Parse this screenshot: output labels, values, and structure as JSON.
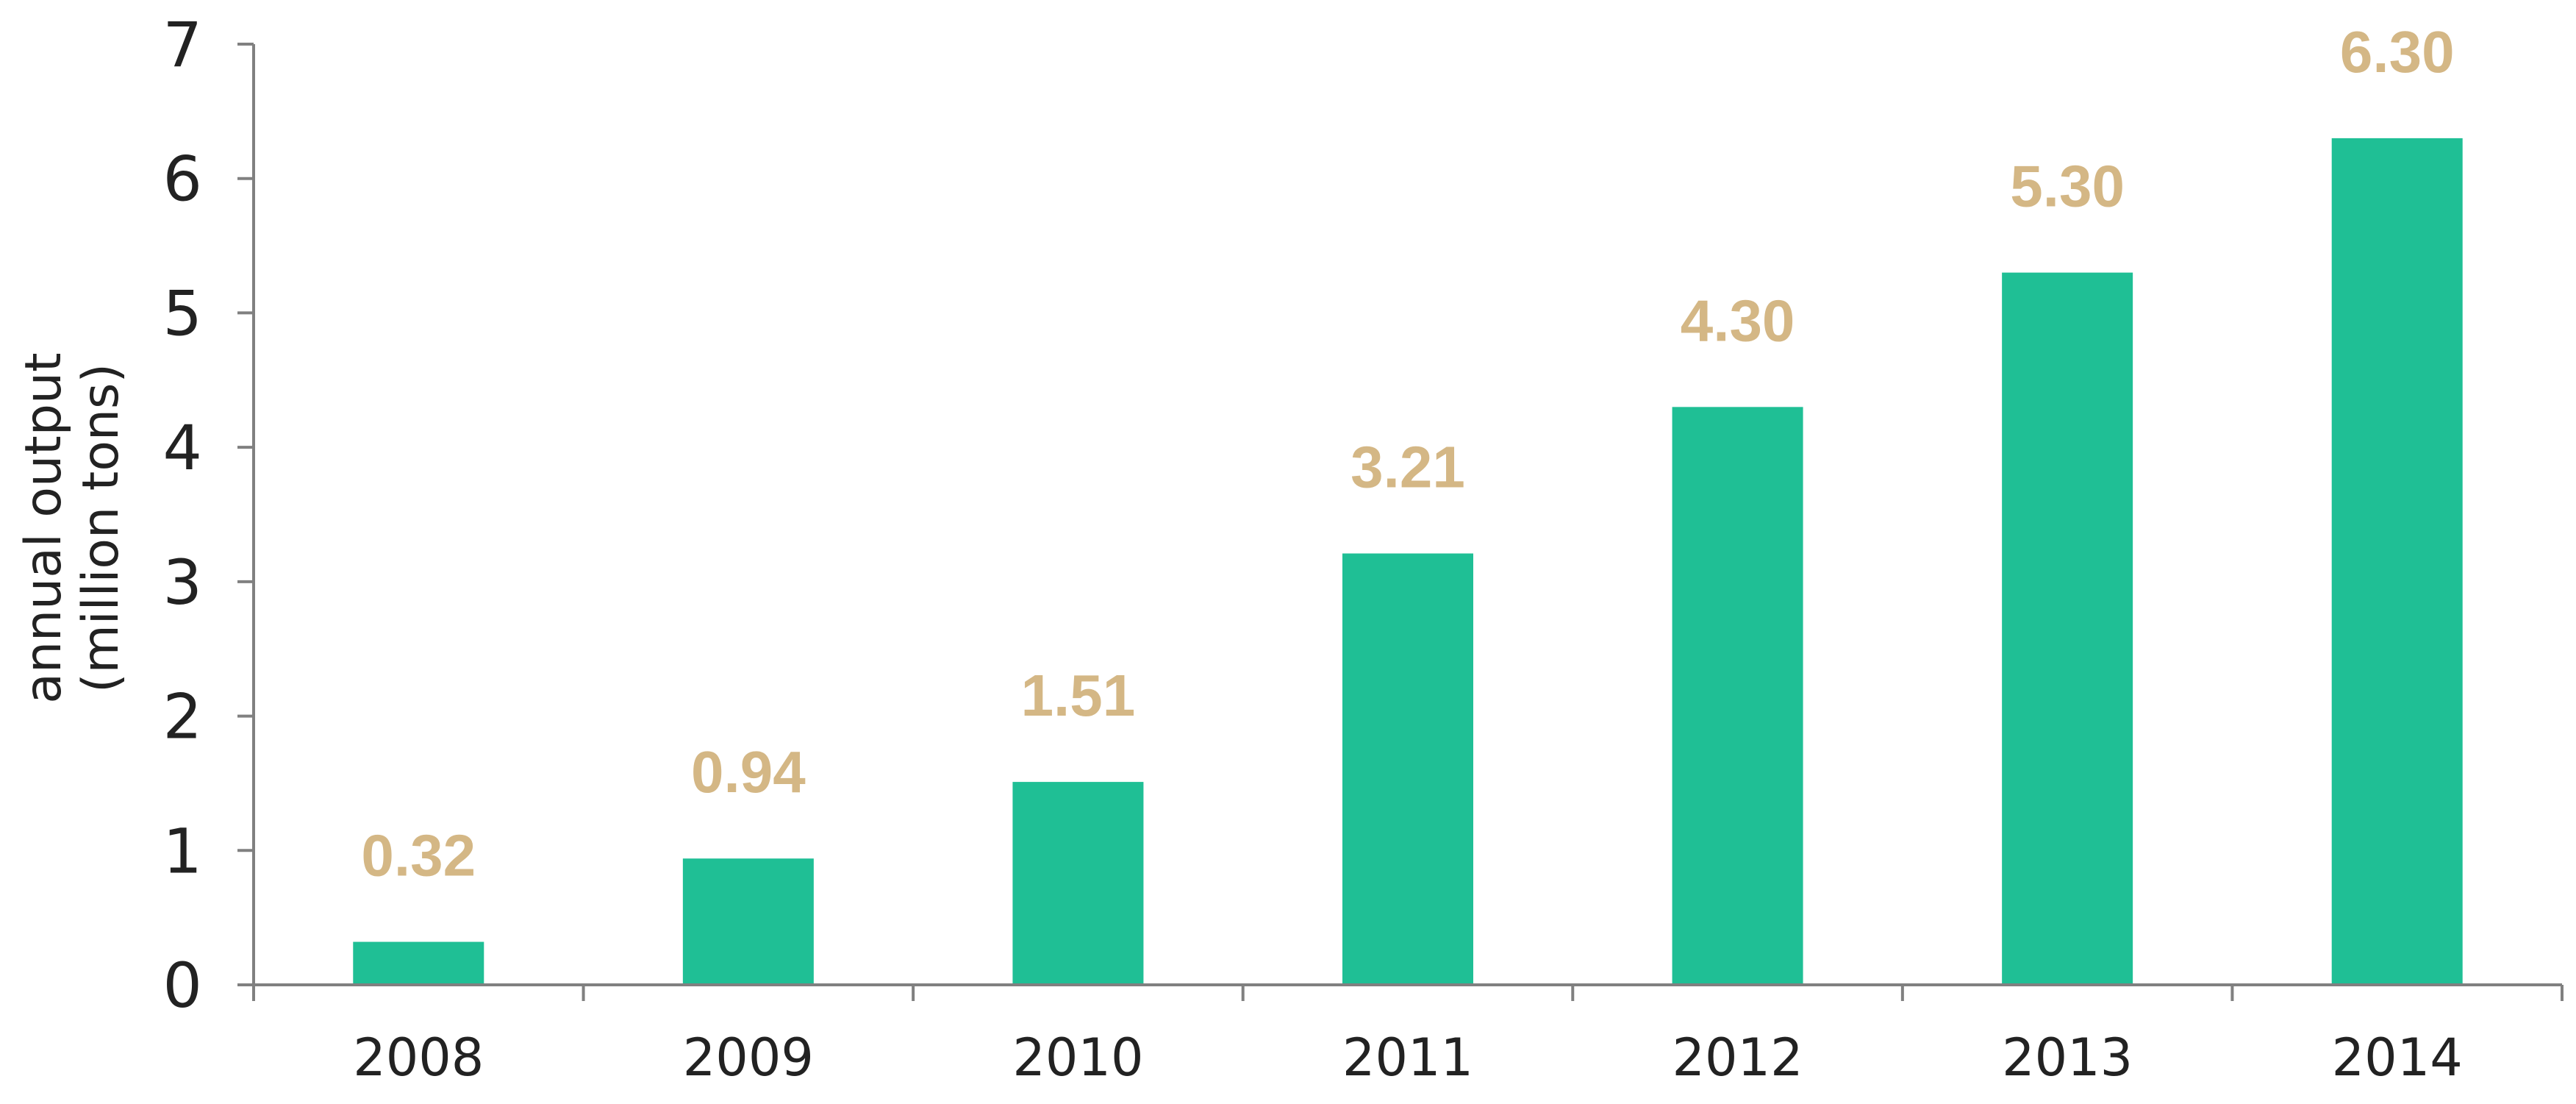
{
  "chart_data": {
    "type": "bar",
    "categories": [
      "2008",
      "2009",
      "2010",
      "2011",
      "2012",
      "2013",
      "2014"
    ],
    "values": [
      0.32,
      0.94,
      1.51,
      3.21,
      4.3,
      5.3,
      6.3
    ],
    "data_labels": [
      "0.32",
      "0.94",
      "1.51",
      "3.21",
      "4.30",
      "5.30",
      "6.30"
    ],
    "title": "",
    "xlabel": "",
    "ylabel_lines": [
      "annual output",
      "(million tons)"
    ],
    "ylim": [
      0,
      7
    ],
    "yticks": [
      0,
      1,
      2,
      3,
      4,
      5,
      6,
      7
    ],
    "grid": false,
    "legend": "none"
  },
  "colors": {
    "bar": "#1fbf95",
    "data_label": "#d4b785",
    "axis": "#808080"
  }
}
